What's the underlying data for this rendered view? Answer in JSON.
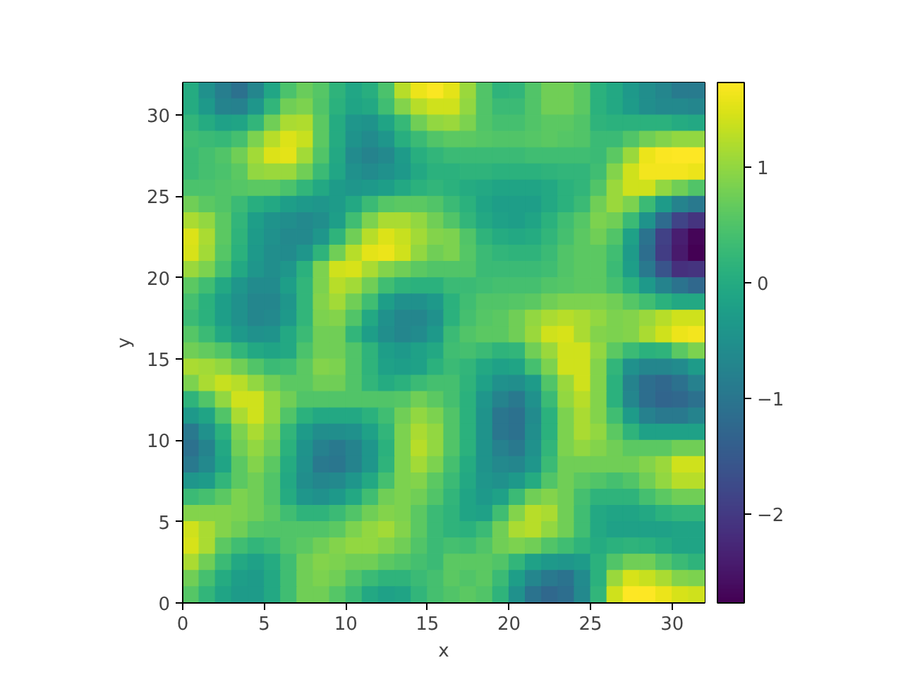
{
  "chart_data": {
    "type": "heatmap",
    "xlabel": "x",
    "ylabel": "y",
    "xlim": [
      0,
      32
    ],
    "ylim": [
      0,
      32
    ],
    "xticks": [
      0,
      5,
      10,
      15,
      20,
      25,
      30
    ],
    "yticks": [
      0,
      5,
      10,
      15,
      20,
      25,
      30
    ],
    "clim": [
      -2.77,
      1.73
    ],
    "cticks": [
      {
        "value": -2,
        "label": "−2"
      },
      {
        "value": -1,
        "label": "−1"
      },
      0,
      1
    ],
    "cells": [
      [
        0.0,
        -0.5,
        -0.85,
        -1.1,
        -0.7,
        -0.1,
        0.45,
        0.7,
        0.55,
        0.15,
        -0.1,
        0.05,
        0.45,
        1.25,
        1.6,
        1.7,
        1.55,
        1.05,
        0.5,
        0.15,
        0.2,
        0.5,
        0.75,
        0.75,
        0.6,
        0.1,
        -0.05,
        -0.35,
        -0.55,
        -0.7,
        -0.9,
        -0.9
      ],
      [
        0.0,
        -0.35,
        -0.75,
        -0.8,
        -0.4,
        0.2,
        0.75,
        0.85,
        0.5,
        0.1,
        -0.15,
        -0.05,
        0.35,
        0.9,
        1.25,
        1.4,
        1.4,
        1.0,
        0.5,
        0.3,
        0.3,
        0.5,
        0.75,
        0.75,
        0.6,
        0.1,
        -0.05,
        -0.3,
        -0.55,
        -0.65,
        -0.65,
        -0.7
      ],
      [
        0.2,
        0.0,
        -0.2,
        -0.15,
        0.2,
        0.75,
        1.15,
        1.2,
        0.6,
        0.0,
        -0.4,
        -0.45,
        -0.15,
        0.25,
        0.75,
        1.0,
        1.05,
        0.85,
        0.5,
        0.4,
        0.4,
        0.5,
        0.6,
        0.6,
        0.5,
        0.15,
        0.1,
        0.1,
        0.1,
        0.1,
        0.0,
        -0.05
      ],
      [
        0.35,
        0.3,
        0.25,
        0.4,
        0.85,
        1.25,
        1.5,
        1.35,
        0.6,
        0.0,
        -0.45,
        -0.6,
        -0.4,
        0.05,
        0.3,
        0.5,
        0.6,
        0.6,
        0.55,
        0.5,
        0.5,
        0.55,
        0.6,
        0.55,
        0.5,
        0.3,
        0.3,
        0.5,
        0.75,
        0.9,
        1.0,
        1.0
      ],
      [
        0.3,
        0.4,
        0.5,
        0.75,
        1.1,
        1.5,
        1.55,
        1.1,
        0.5,
        -0.05,
        -0.6,
        -0.75,
        -0.65,
        -0.3,
        0.05,
        0.2,
        0.3,
        0.3,
        0.3,
        0.3,
        0.3,
        0.35,
        0.35,
        0.35,
        0.35,
        0.3,
        0.6,
        1.05,
        1.6,
        1.7,
        1.73,
        1.72
      ],
      [
        0.3,
        0.4,
        0.45,
        0.6,
        1.0,
        1.05,
        1.05,
        0.75,
        0.3,
        -0.1,
        -0.5,
        -0.6,
        -0.5,
        -0.35,
        -0.05,
        0.1,
        0.1,
        0.15,
        0.15,
        0.1,
        0.1,
        0.1,
        0.15,
        0.2,
        0.2,
        0.35,
        0.9,
        1.4,
        1.65,
        1.65,
        1.65,
        1.6
      ],
      [
        0.45,
        0.45,
        0.5,
        0.55,
        0.6,
        0.6,
        0.45,
        0.2,
        -0.05,
        -0.3,
        -0.4,
        -0.35,
        -0.25,
        -0.05,
        0.1,
        0.2,
        0.1,
        0.0,
        -0.05,
        -0.15,
        -0.15,
        -0.15,
        -0.05,
        0.1,
        0.2,
        0.5,
        1.05,
        1.4,
        1.4,
        1.0,
        0.75,
        0.5
      ],
      [
        0.75,
        0.6,
        0.5,
        0.3,
        0.05,
        -0.05,
        -0.25,
        -0.35,
        -0.4,
        -0.3,
        -0.05,
        0.3,
        0.55,
        0.6,
        0.6,
        0.5,
        0.3,
        0.1,
        -0.15,
        -0.25,
        -0.25,
        -0.25,
        -0.05,
        0.1,
        0.3,
        0.75,
        1.05,
        0.85,
        0.3,
        -0.3,
        -0.75,
        -0.95
      ],
      [
        1.15,
        1.0,
        0.6,
        0.2,
        -0.25,
        -0.45,
        -0.55,
        -0.65,
        -0.55,
        -0.25,
        0.35,
        0.85,
        1.15,
        1.15,
        1.0,
        0.75,
        0.5,
        0.2,
        -0.05,
        -0.2,
        -0.25,
        -0.15,
        0.1,
        0.35,
        0.55,
        0.85,
        0.75,
        0.3,
        -0.45,
        -1.2,
        -1.85,
        -2.1
      ],
      [
        1.5,
        1.15,
        0.6,
        0.15,
        -0.3,
        -0.5,
        -0.65,
        -0.65,
        -0.4,
        0.15,
        0.75,
        1.25,
        1.5,
        1.35,
        1.1,
        0.9,
        0.85,
        0.5,
        0.15,
        0.0,
        -0.05,
        0.0,
        0.2,
        0.4,
        0.6,
        0.75,
        0.5,
        -0.2,
        -1.05,
        -1.9,
        -2.4,
        -2.7
      ],
      [
        1.45,
        1.1,
        0.55,
        0.1,
        -0.35,
        -0.55,
        -0.6,
        -0.4,
        0.15,
        0.75,
        1.25,
        1.55,
        1.6,
        1.4,
        1.0,
        0.75,
        0.85,
        0.55,
        0.3,
        0.2,
        0.15,
        0.15,
        0.3,
        0.5,
        0.6,
        0.6,
        0.35,
        -0.3,
        -1.15,
        -1.95,
        -2.45,
        -2.77
      ],
      [
        1.05,
        0.85,
        0.4,
        -0.05,
        -0.4,
        -0.55,
        -0.4,
        0.1,
        0.85,
        1.4,
        1.45,
        1.15,
        0.9,
        0.75,
        0.6,
        0.5,
        0.5,
        0.5,
        0.3,
        0.3,
        0.3,
        0.3,
        0.35,
        0.5,
        0.6,
        0.6,
        0.3,
        -0.25,
        -0.95,
        -1.6,
        -2.15,
        -2.1
      ],
      [
        0.6,
        0.35,
        -0.05,
        -0.4,
        -0.6,
        -0.6,
        -0.25,
        0.2,
        0.85,
        1.25,
        1.1,
        0.75,
        0.35,
        0.15,
        0.1,
        0.1,
        0.3,
        0.3,
        0.35,
        0.4,
        0.4,
        0.4,
        0.5,
        0.55,
        0.6,
        0.6,
        0.4,
        0.1,
        -0.35,
        -0.75,
        -1.05,
        -1.25
      ],
      [
        0.4,
        0.1,
        -0.25,
        -0.5,
        -0.7,
        -0.7,
        -0.4,
        0.2,
        0.9,
        1.1,
        0.75,
        0.35,
        -0.25,
        -0.5,
        -0.5,
        -0.35,
        0.1,
        0.35,
        0.5,
        0.5,
        0.55,
        0.6,
        0.75,
        0.85,
        0.85,
        0.85,
        0.75,
        0.55,
        0.35,
        0.1,
        -0.05,
        -0.05
      ],
      [
        0.3,
        0.1,
        -0.25,
        -0.5,
        -0.7,
        -0.65,
        -0.35,
        0.2,
        0.85,
        0.9,
        0.5,
        -0.05,
        -0.5,
        -0.7,
        -0.7,
        -0.5,
        0.1,
        0.4,
        0.55,
        0.6,
        0.75,
        1.0,
        1.15,
        1.25,
        1.15,
        1.0,
        0.85,
        0.9,
        1.05,
        1.25,
        1.4,
        1.4
      ],
      [
        0.55,
        0.3,
        -0.05,
        -0.35,
        -0.5,
        -0.45,
        -0.05,
        0.3,
        0.75,
        0.75,
        0.2,
        -0.25,
        -0.55,
        -0.7,
        -0.6,
        -0.35,
        0.3,
        0.5,
        0.6,
        0.6,
        0.75,
        1.05,
        1.4,
        1.45,
        1.15,
        0.9,
        0.85,
        0.9,
        1.15,
        1.4,
        1.6,
        1.65
      ],
      [
        0.75,
        0.65,
        0.5,
        0.2,
        -0.05,
        -0.15,
        -0.05,
        0.45,
        0.75,
        0.75,
        0.5,
        0.15,
        -0.25,
        -0.35,
        -0.2,
        -0.05,
        0.35,
        0.4,
        0.3,
        0.15,
        0.2,
        0.75,
        1.05,
        1.4,
        1.4,
        1.0,
        0.6,
        0.3,
        0.1,
        0.15,
        0.6,
        0.85
      ],
      [
        1.15,
        1.1,
        1.0,
        0.75,
        0.5,
        0.3,
        0.35,
        0.6,
        0.9,
        0.85,
        0.5,
        0.15,
        -0.2,
        -0.25,
        -0.2,
        0.1,
        0.3,
        0.2,
        -0.05,
        -0.2,
        -0.15,
        0.4,
        0.85,
        1.4,
        1.4,
        0.9,
        0.2,
        -0.5,
        -0.7,
        -0.7,
        -0.6,
        -0.3
      ],
      [
        0.85,
        1.15,
        1.35,
        1.25,
        1.0,
        0.75,
        0.6,
        0.6,
        0.75,
        0.75,
        0.5,
        0.2,
        0.0,
        0.1,
        0.3,
        0.4,
        0.4,
        0.15,
        -0.2,
        -0.5,
        -0.55,
        -0.3,
        0.5,
        1.05,
        1.4,
        0.9,
        0.1,
        -0.75,
        -1.15,
        -1.25,
        -1.1,
        -0.8
      ],
      [
        0.15,
        0.5,
        1.0,
        1.4,
        1.4,
        1.0,
        0.75,
        0.5,
        0.5,
        0.5,
        0.5,
        0.5,
        0.5,
        0.55,
        0.75,
        0.6,
        0.4,
        0.1,
        -0.4,
        -0.75,
        -0.95,
        -0.5,
        0.3,
        1.0,
        1.25,
        0.9,
        0.1,
        -0.7,
        -1.15,
        -1.3,
        -1.25,
        -1.1
      ],
      [
        -0.35,
        -0.15,
        0.5,
        1.15,
        1.4,
        1.0,
        0.5,
        0.1,
        -0.05,
        -0.05,
        -0.05,
        0.1,
        0.35,
        0.75,
        1.0,
        0.85,
        0.5,
        0.1,
        -0.45,
        -1.0,
        -1.1,
        -0.6,
        0.1,
        0.85,
        1.15,
        0.9,
        0.35,
        -0.3,
        -0.8,
        -0.95,
        -0.95,
        -0.75
      ],
      [
        -0.95,
        -0.5,
        0.1,
        0.85,
        1.15,
        0.85,
        0.2,
        -0.3,
        -0.55,
        -0.55,
        -0.5,
        -0.2,
        0.2,
        0.85,
        1.15,
        1.0,
        0.5,
        0.1,
        -0.45,
        -1.0,
        -1.1,
        -0.55,
        0.1,
        0.85,
        1.15,
        1.0,
        0.6,
        0.15,
        -0.2,
        -0.2,
        -0.2,
        -0.2
      ],
      [
        -1.1,
        -0.75,
        -0.05,
        0.75,
        1.0,
        0.75,
        0.1,
        -0.45,
        -0.8,
        -0.95,
        -0.75,
        -0.4,
        0.1,
        0.85,
        1.25,
        1.0,
        0.5,
        0.1,
        -0.45,
        -0.8,
        -0.95,
        -0.5,
        0.2,
        0.85,
        1.0,
        0.9,
        0.75,
        0.6,
        0.6,
        0.6,
        0.75,
        0.75
      ],
      [
        -0.95,
        -0.65,
        -0.15,
        0.6,
        0.9,
        0.6,
        0.0,
        -0.5,
        -0.95,
        -1.0,
        -0.75,
        -0.4,
        0.15,
        0.85,
        1.1,
        0.85,
        0.4,
        0.0,
        -0.45,
        -0.65,
        -0.7,
        -0.4,
        0.3,
        0.75,
        0.75,
        0.75,
        0.75,
        0.75,
        0.9,
        1.05,
        1.4,
        1.4
      ],
      [
        -0.4,
        -0.3,
        0.2,
        0.6,
        0.75,
        0.5,
        -0.05,
        -0.55,
        -0.7,
        -0.65,
        -0.4,
        -0.05,
        0.4,
        0.85,
        0.9,
        0.6,
        0.3,
        -0.05,
        -0.4,
        -0.5,
        -0.35,
        0.0,
        0.5,
        0.75,
        0.6,
        0.5,
        0.4,
        0.5,
        0.75,
        1.0,
        1.25,
        1.25
      ],
      [
        0.3,
        0.4,
        0.6,
        0.85,
        0.75,
        0.5,
        0.0,
        -0.4,
        -0.5,
        -0.35,
        -0.05,
        0.35,
        0.75,
        0.85,
        0.75,
        0.5,
        0.2,
        -0.15,
        -0.35,
        -0.2,
        0.3,
        0.75,
        0.9,
        0.75,
        0.4,
        0.15,
        0.15,
        0.15,
        0.4,
        0.6,
        0.75,
        0.75
      ],
      [
        0.9,
        0.9,
        0.9,
        0.85,
        0.75,
        0.6,
        0.35,
        0.15,
        0.15,
        0.3,
        0.5,
        0.75,
        0.9,
        0.85,
        0.6,
        0.3,
        0.15,
        -0.15,
        -0.2,
        0.35,
        0.9,
        1.25,
        1.15,
        0.75,
        0.35,
        -0.05,
        -0.15,
        -0.15,
        -0.05,
        0.1,
        0.2,
        0.2
      ],
      [
        1.4,
        1.15,
        0.9,
        0.75,
        0.55,
        0.5,
        0.5,
        0.5,
        0.5,
        0.6,
        0.85,
        1.0,
        1.1,
        0.9,
        0.6,
        0.3,
        0.15,
        0.1,
        0.3,
        0.75,
        1.15,
        1.25,
        1.0,
        0.75,
        0.35,
        -0.05,
        -0.2,
        -0.2,
        -0.2,
        -0.2,
        -0.15,
        -0.15
      ],
      [
        1.45,
        1.15,
        0.6,
        0.35,
        0.2,
        0.3,
        0.5,
        0.6,
        0.75,
        0.9,
        1.0,
        1.0,
        0.9,
        0.75,
        0.5,
        0.3,
        0.4,
        0.35,
        0.5,
        0.75,
        0.85,
        0.75,
        0.5,
        0.35,
        0.15,
        0.0,
        0.1,
        0.15,
        0.1,
        0.0,
        -0.15,
        -0.15
      ],
      [
        1.15,
        0.75,
        0.3,
        -0.05,
        -0.2,
        0.0,
        0.35,
        0.75,
        0.9,
        0.85,
        0.75,
        0.75,
        0.6,
        0.5,
        0.4,
        0.3,
        0.6,
        0.6,
        0.6,
        0.5,
        0.2,
        -0.2,
        -0.35,
        -0.4,
        -0.3,
        0.1,
        0.5,
        0.75,
        0.75,
        0.5,
        0.3,
        0.15
      ],
      [
        0.75,
        0.4,
        0.0,
        -0.25,
        -0.3,
        -0.05,
        0.35,
        0.75,
        0.85,
        0.75,
        0.5,
        0.3,
        0.15,
        0.15,
        0.3,
        0.4,
        0.6,
        0.5,
        0.6,
        0.3,
        -0.25,
        -0.7,
        -0.95,
        -1.05,
        -0.6,
        0.1,
        1.05,
        1.45,
        1.35,
        1.15,
        0.9,
        0.85
      ],
      [
        0.55,
        0.2,
        -0.15,
        -0.3,
        -0.3,
        -0.05,
        0.35,
        0.75,
        0.75,
        0.55,
        0.3,
        -0.05,
        -0.2,
        -0.15,
        0.2,
        0.4,
        0.5,
        0.6,
        0.5,
        0.15,
        -0.5,
        -1.05,
        -1.25,
        -1.15,
        -0.65,
        0.2,
        1.4,
        1.73,
        1.73,
        1.6,
        1.45,
        1.4
      ]
    ]
  }
}
